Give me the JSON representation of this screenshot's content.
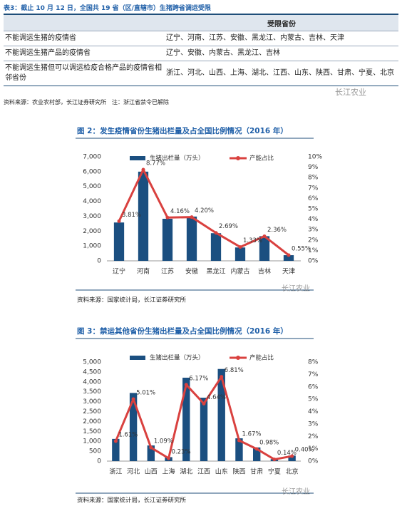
{
  "table": {
    "title": "表3：截止 10 月 12 日，全国共 19 省（区/直辖市）生猪跨省调运受限",
    "header": [
      "受限省份"
    ],
    "rows": [
      [
        "不能调运生猪的疫情省",
        "辽宁、河南、江苏、安徽、黑龙江、内蒙古、吉林、天津"
      ],
      [
        "不能调运生猪产品的疫情省",
        "辽宁、安徽、内蒙古、黑龙江、吉林"
      ],
      [
        "不能调运生猪但可以调运检疫合格产品的疫情省相邻省份",
        "浙江、河北、山西、上海、湖北、江西、山东、陕西、甘肃、宁夏、北京"
      ]
    ],
    "source": "资料来源：农业农村部，长江证券研究所",
    "note": "注：浙江省禁令已解除"
  },
  "watermark": "长江农业",
  "chart_data": [
    {
      "type": "combo",
      "title": "图 2：发生疫情省份生猪出栏量及占全国比例情况（2016 年）",
      "categories": [
        "辽宁",
        "河南",
        "江苏",
        "安徽",
        "黑龙江",
        "内蒙古",
        "吉林",
        "天津"
      ],
      "series": [
        {
          "name": "生猪出栏量（万头）",
          "type": "bar",
          "color": "#1b4f80",
          "values": [
            2580,
            6000,
            2830,
            2980,
            1860,
            900,
            1660,
            380
          ]
        },
        {
          "name": "产能占比",
          "type": "line",
          "axis": "y2",
          "color": "#d9413f",
          "values": [
            3.81,
            8.77,
            4.16,
            4.2,
            2.69,
            1.33,
            2.36,
            0.55
          ],
          "value_labels": [
            "3.81%",
            "8.77%",
            "4.16%",
            "4.20%",
            "2.69%",
            "1.33%",
            "2.36%",
            "0.55%"
          ]
        }
      ],
      "ylim": [
        0,
        7000
      ],
      "yticks": [
        0,
        {
          "value": 1000,
          "label": "1,000"
        },
        {
          "value": 2000,
          "label": "2,000"
        },
        {
          "value": 3000,
          "label": "3,000"
        },
        {
          "value": 4000,
          "label": "4,000"
        },
        {
          "value": 5000,
          "label": "5,000"
        },
        {
          "value": 6000,
          "label": "6,000"
        },
        {
          "value": 7000,
          "label": "7,000"
        }
      ],
      "y2lim": [
        0,
        10
      ],
      "y2ticks": [
        {
          "value": 0,
          "label": "0%"
        },
        {
          "value": 1,
          "label": "1%"
        },
        {
          "value": 2,
          "label": "2%"
        },
        {
          "value": 3,
          "label": "3%"
        },
        {
          "value": 4,
          "label": "4%"
        },
        {
          "value": 5,
          "label": "5%"
        },
        {
          "value": 6,
          "label": "6%"
        },
        {
          "value": 7,
          "label": "7%"
        },
        {
          "value": 8,
          "label": "8%"
        },
        {
          "value": 9,
          "label": "9%"
        },
        {
          "value": 10,
          "label": "10%"
        }
      ],
      "source": "资料来源：国家统计局，长江证券研究所"
    },
    {
      "type": "combo",
      "title": "图 3：禁运其他省份生猪出栏量及占全国比例情况（2016 年）",
      "categories": [
        "浙江",
        "河北",
        "山西",
        "上海",
        "湖北",
        "江西",
        "山东",
        "陕西",
        "甘肃",
        "宁夏",
        "北京"
      ],
      "series": [
        {
          "name": "生猪出栏量（万头）",
          "type": "bar",
          "color": "#1b4f80",
          "values": [
            1120,
            3440,
            790,
            200,
            4210,
            3200,
            4650,
            1150,
            690,
            100,
            280
          ]
        },
        {
          "name": "产能占比",
          "type": "line",
          "axis": "y2",
          "color": "#d9413f",
          "values": [
            1.61,
            5.01,
            1.09,
            0.23,
            6.17,
            4.64,
            6.81,
            1.67,
            0.98,
            0.14,
            0.4
          ],
          "value_labels": [
            "1.61%",
            "5.01%",
            "1.09%",
            "0.23%",
            "6.17%",
            "4.64%",
            "6.81%",
            "1.67%",
            "0.98%",
            "0.14%",
            "0.40%"
          ]
        }
      ],
      "ylim": [
        0,
        5000
      ],
      "yticks": [
        0,
        500,
        {
          "value": 1000,
          "label": "1,000"
        },
        {
          "value": 1500,
          "label": "1,500"
        },
        {
          "value": 2000,
          "label": "2,000"
        },
        {
          "value": 2500,
          "label": "2,500"
        },
        {
          "value": 3000,
          "label": "3,000"
        },
        {
          "value": 3500,
          "label": "3,500"
        },
        {
          "value": 4000,
          "label": "4,000"
        },
        {
          "value": 4500,
          "label": "4,500"
        },
        {
          "value": 5000,
          "label": "5,000"
        }
      ],
      "y2lim": [
        0,
        8
      ],
      "y2ticks": [
        {
          "value": 0,
          "label": "0%"
        },
        {
          "value": 1,
          "label": "1%"
        },
        {
          "value": 2,
          "label": "2%"
        },
        {
          "value": 3,
          "label": "3%"
        },
        {
          "value": 4,
          "label": "4%"
        },
        {
          "value": 5,
          "label": "5%"
        },
        {
          "value": 6,
          "label": "6%"
        },
        {
          "value": 7,
          "label": "7%"
        },
        {
          "value": 8,
          "label": "8%"
        }
      ],
      "source": "资料来源：国家统计局，长江证券研究所"
    }
  ]
}
